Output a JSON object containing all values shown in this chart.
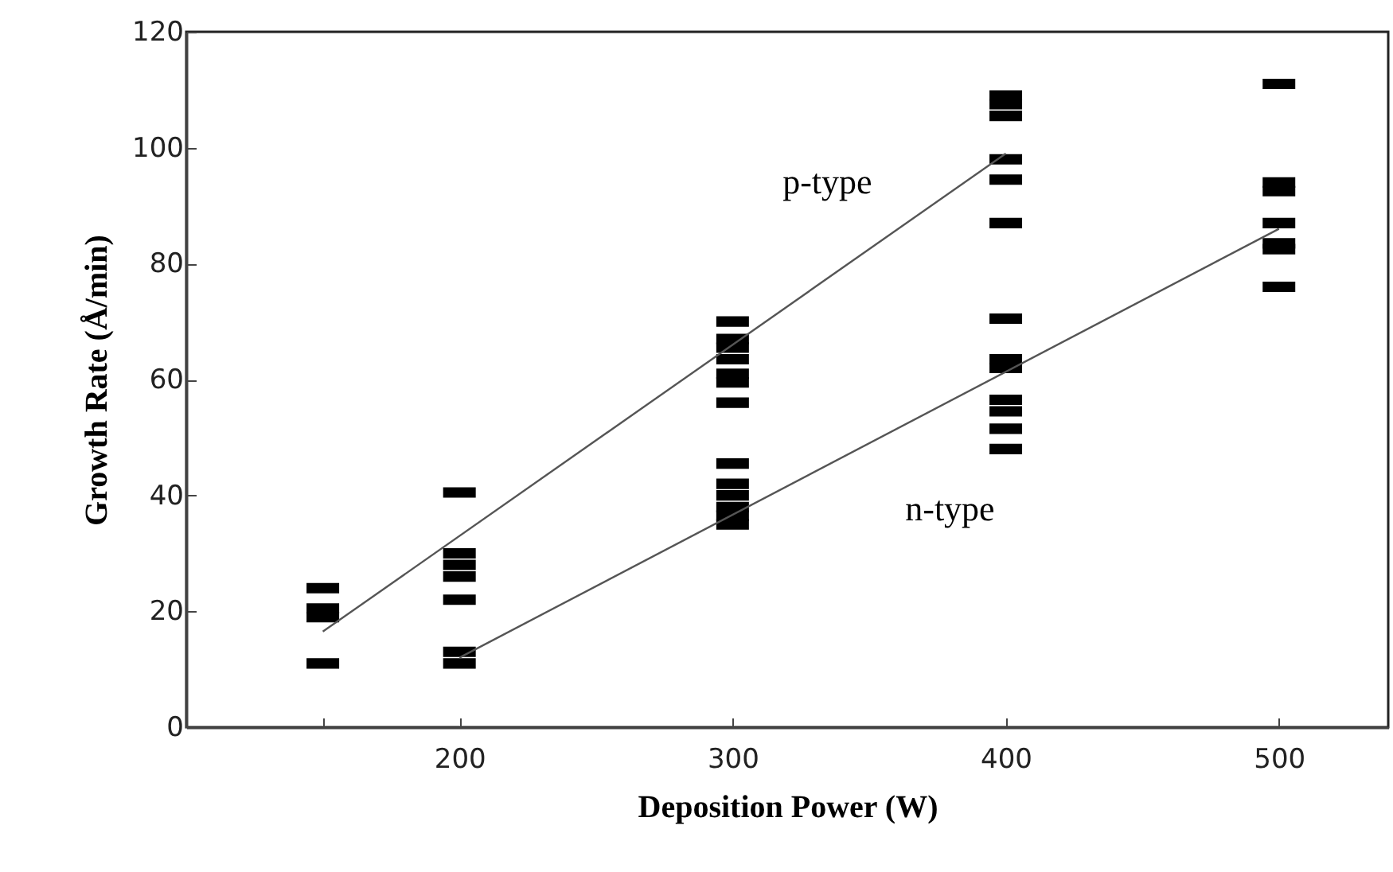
{
  "chart_data": {
    "type": "scatter",
    "xlabel": "Deposition Power (W)",
    "ylabel": "Growth Rate (Å/min)",
    "xlim": [
      100,
      540
    ],
    "xticks": [
      {
        "value": 150,
        "label": null
      },
      200,
      300,
      400,
      500
    ],
    "ylim": [
      0,
      120
    ],
    "yticks": [
      0,
      20,
      40,
      60,
      80,
      100,
      120
    ],
    "grid": false,
    "series": [
      {
        "color": "#000000",
        "x": [
          150,
          150,
          150,
          150,
          200,
          200,
          200,
          200,
          200,
          200,
          200,
          300,
          300,
          300,
          300,
          300,
          300,
          300,
          300,
          300,
          300,
          300,
          300,
          300,
          400,
          400,
          400,
          400,
          400,
          400,
          400,
          400,
          400,
          400,
          400,
          400,
          400,
          500,
          500,
          500,
          500,
          500,
          500,
          500
        ],
        "values": [
          24,
          20.5,
          19,
          11,
          40.5,
          30,
          28,
          26,
          22,
          13,
          11,
          70,
          67,
          65.5,
          63.5,
          61,
          59.5,
          56,
          45.5,
          42,
          40,
          38,
          36.5,
          35,
          109,
          107.5,
          105.5,
          98,
          94.5,
          87,
          70.5,
          63.5,
          62,
          56.5,
          54.5,
          51.5,
          48,
          111,
          94,
          92.5,
          87,
          83.5,
          82.5,
          76
        ]
      },
      {
        "type": "line",
        "name": "p-type",
        "color": "#555555",
        "x": [
          150,
          400
        ],
        "values": [
          16.5,
          99
        ]
      },
      {
        "type": "line",
        "name": "n-type",
        "color": "#555555",
        "x": [
          200,
          500
        ],
        "values": [
          12,
          86
        ]
      }
    ]
  }
}
